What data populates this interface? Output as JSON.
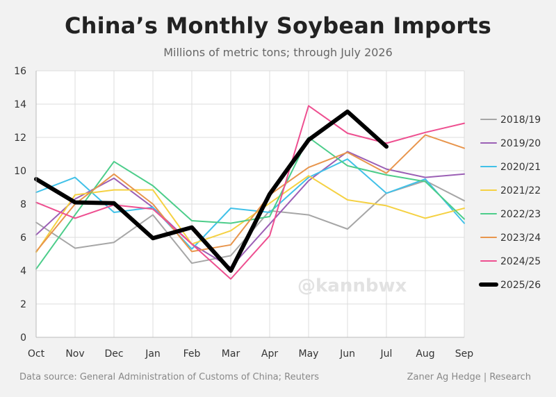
{
  "header": {
    "title": "China’s Monthly Soybean Imports",
    "subtitle": "Millions of metric tons; through July 2026"
  },
  "footer": {
    "source": "Data source: General Administration of Customs of China; Reuters",
    "credit": "Zaner Ag Hedge | Research"
  },
  "watermark": "@kannbwx",
  "chart_data": {
    "type": "line",
    "x": [
      "Oct",
      "Nov",
      "Dec",
      "Jan",
      "Feb",
      "Mar",
      "Apr",
      "May",
      "Jun",
      "Jul",
      "Aug",
      "Sep"
    ],
    "ylim": [
      0,
      16
    ],
    "yticks": [
      0,
      2,
      4,
      6,
      8,
      10,
      12,
      14,
      16
    ],
    "grid": true,
    "legend": "right",
    "series": [
      {
        "name": "2018/19",
        "color": "#a6a6a6",
        "width": 2,
        "values": [
          6.9,
          5.35,
          5.7,
          7.35,
          4.45,
          4.9,
          7.6,
          7.35,
          6.5,
          8.65,
          9.4,
          8.2
        ]
      },
      {
        "name": "2019/20",
        "color": "#9b5fb5",
        "width": 2,
        "values": [
          6.15,
          8.3,
          9.55,
          7.8,
          5.6,
          4.2,
          6.8,
          9.4,
          11.15,
          10.1,
          9.6,
          9.8
        ]
      },
      {
        "name": "2020/21",
        "color": "#41c1e8",
        "width": 2,
        "values": [
          8.7,
          9.6,
          7.5,
          7.8,
          5.3,
          7.75,
          7.5,
          9.6,
          10.7,
          8.65,
          9.5,
          6.85
        ]
      },
      {
        "name": "2021/22",
        "color": "#f5d142",
        "width": 2,
        "values": [
          5.1,
          8.55,
          8.85,
          8.85,
          5.6,
          6.4,
          8.05,
          9.7,
          8.25,
          7.9,
          7.15,
          7.75
        ]
      },
      {
        "name": "2022/23",
        "color": "#4ccd8a",
        "width": 2,
        "values": [
          4.1,
          7.35,
          10.55,
          9.1,
          7.0,
          6.85,
          7.25,
          12.0,
          10.3,
          9.75,
          9.35,
          7.1
        ]
      },
      {
        "name": "2023/24",
        "color": "#e8954c",
        "width": 2,
        "values": [
          5.15,
          8.0,
          9.8,
          8.0,
          5.15,
          5.55,
          8.55,
          10.2,
          11.1,
          9.85,
          12.15,
          11.35
        ]
      },
      {
        "name": "2024/25",
        "color": "#ee4f90",
        "width": 2,
        "values": [
          8.1,
          7.15,
          7.95,
          7.7,
          5.6,
          3.5,
          6.1,
          13.9,
          12.25,
          11.65,
          12.3,
          12.85
        ]
      },
      {
        "name": "2025/26",
        "color": "#000000",
        "width": 6,
        "values": [
          9.5,
          8.1,
          8.05,
          5.95,
          6.6,
          4.0,
          8.6,
          11.85,
          13.55,
          11.45,
          null,
          null
        ]
      }
    ]
  }
}
